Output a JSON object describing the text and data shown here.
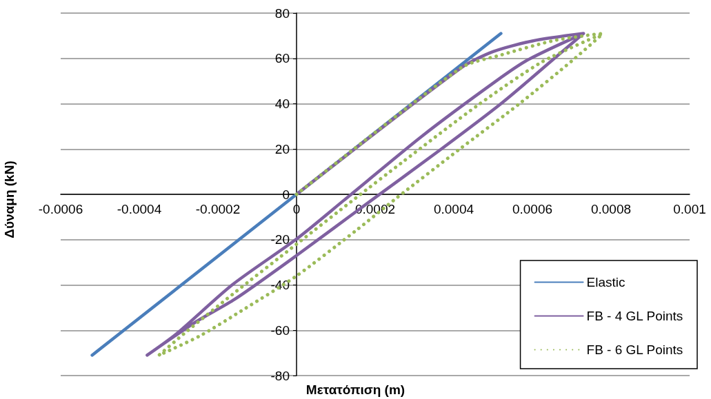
{
  "chart_data": {
    "type": "line",
    "xlabel": "Μετατόπιση (m)",
    "ylabel": "Δύναμη (kN)",
    "xlim": [
      -0.0006,
      0.001
    ],
    "xticks": [
      -0.0006,
      -0.0004,
      -0.0002,
      0,
      0.0002,
      0.0004,
      0.0006,
      0.0008,
      0.001
    ],
    "ylim": [
      -80,
      80
    ],
    "yticks": [
      -80,
      -60,
      -40,
      -20,
      0,
      20,
      40,
      60,
      80
    ],
    "grid": "y",
    "legend": "bottom right",
    "marker": "none",
    "series": [
      {
        "name": "Elastic",
        "color": "#4a7ebb",
        "line_style": "solid",
        "x": [
          -0.00052,
          0,
          0.00052
        ],
        "values": [
          -71,
          0,
          71
        ]
      },
      {
        "name": "FB - 4 GL Points",
        "color": "#7f60a0",
        "line_style": "solid",
        "x": [
          0,
          0.00042,
          0.0005,
          0.0006,
          0.00073,
          0.00059,
          0.00051,
          0.00032,
          0.00012,
          0,
          -0.000164,
          -0.000305,
          -0.00038,
          -0.000258,
          -0.000157,
          0,
          0.00019,
          0.000366,
          0.00052,
          0.00066,
          0.00073
        ],
        "values": [
          0,
          56,
          63,
          67.7,
          71,
          59.5,
          50.3,
          25.8,
          -2.7,
          -19.7,
          -40,
          -61.5,
          -71,
          -56.5,
          -46.3,
          -27,
          -2.7,
          19.7,
          40,
          60.6,
          71
        ]
      },
      {
        "name": "FB - 6 GL Points",
        "color": "#9bbb59",
        "line_style": "dotted",
        "x": [
          0,
          0.00042,
          0.00052,
          0.00065,
          0.00074,
          0.00078,
          0.000625,
          0.00046,
          0.000267,
          0.00015,
          0,
          -0.000164,
          -0.00028,
          -0.00035,
          -0.000246,
          -0.00014,
          0,
          0.000154,
          0.000254,
          0.000413,
          0.000567,
          0.000708,
          0.00078
        ],
        "values": [
          0,
          56,
          61.5,
          67.7,
          70.2,
          71,
          58.5,
          39.2,
          13.9,
          -1.7,
          -22,
          -44.3,
          -60.6,
          -71,
          -62.5,
          -51.4,
          -36,
          -15.6,
          -1.7,
          19.7,
          40,
          60,
          71
        ]
      }
    ]
  }
}
